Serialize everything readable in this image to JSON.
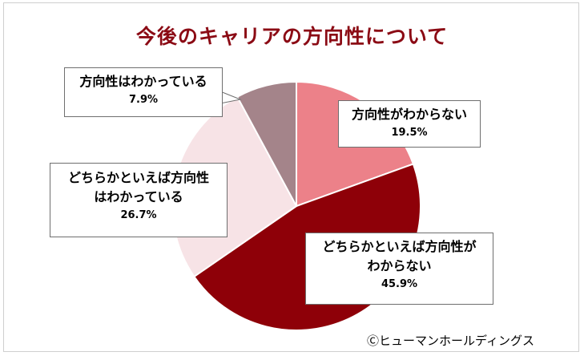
{
  "chart_data": {
    "type": "pie",
    "title": "今後のキャリアの方向性について",
    "slices": [
      {
        "label_lines": [
          "方向性がわからない"
        ],
        "value": 19.5,
        "display": "19.5%",
        "color": "#ec8189"
      },
      {
        "label_lines": [
          "どちらかといえば方向性が",
          "わからない"
        ],
        "value": 45.9,
        "display": "45.9%",
        "color": "#8e0008"
      },
      {
        "label_lines": [
          "どちらかといえば方向性",
          "はわかっている"
        ],
        "value": 26.7,
        "display": "26.7%",
        "color": "#f7e3e6"
      },
      {
        "label_lines": [
          "方向性はわかっている"
        ],
        "value": 7.9,
        "display": "7.9%",
        "color": "#a4848a"
      }
    ],
    "start": "12 o'clock, clockwise"
  },
  "credit": "Ⓒヒューマンホールディングス",
  "colors": {
    "title": "#8b0a14",
    "callout_border": "#6f6f6f",
    "slice_edge": "#ffffff"
  }
}
